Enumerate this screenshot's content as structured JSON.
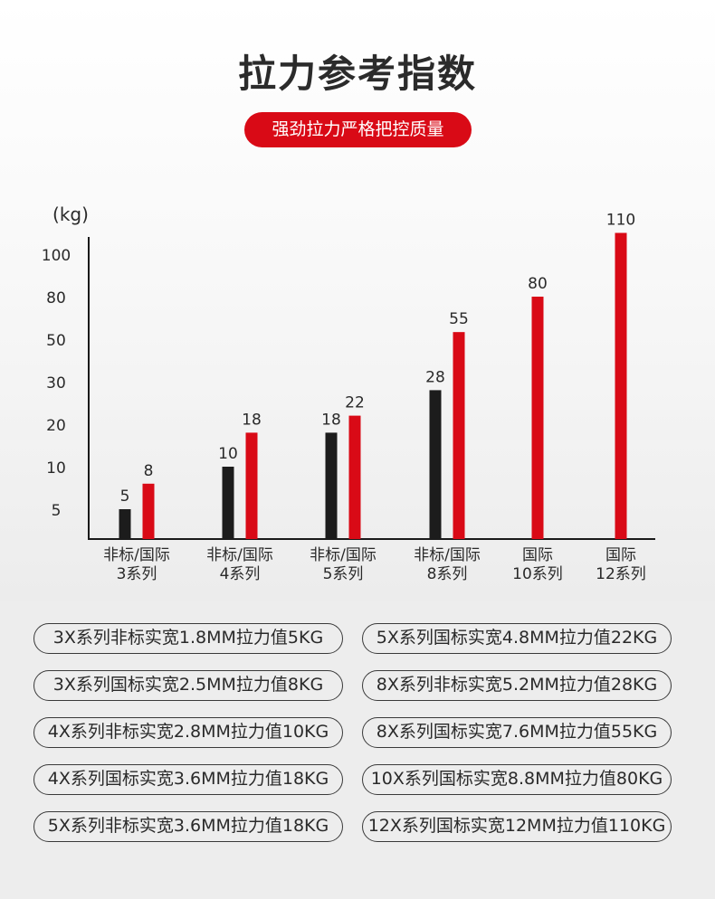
{
  "header": {
    "title": "拉力参考指数",
    "subtitle": "强劲拉力严格把控质量"
  },
  "chart_data": {
    "type": "bar",
    "ylabel": "(kg)",
    "y_ticks": [
      "5",
      "10",
      "20",
      "30",
      "50",
      "80",
      "100"
    ],
    "categories": [
      [
        "非标/国际",
        "3系列"
      ],
      [
        "非标/国际",
        "4系列"
      ],
      [
        "非标/国际",
        "5系列"
      ],
      [
        "非标/国际",
        "8系列"
      ],
      [
        "国际",
        "10系列"
      ],
      [
        "国际",
        "12系列"
      ]
    ],
    "series": [
      {
        "values": [
          5,
          10,
          18,
          28,
          null,
          null
        ],
        "color": "#1c1c1c"
      },
      {
        "values": [
          8,
          18,
          22,
          55,
          80,
          110
        ],
        "color": "#d90a16"
      }
    ],
    "grid": false,
    "legend": "none"
  },
  "spec_list": [
    "3X系列非标实宽1.8MM拉力值5KG",
    "5X系列国标实宽4.8MM拉力值22KG",
    "3X系列国标实宽2.5MM拉力值8KG",
    "8X系列非标实宽5.2MM拉力值28KG",
    "4X系列非标实宽2.8MM拉力值10KG",
    "8X系列国标实宽7.6MM拉力值55KG",
    "4X系列国标实宽3.6MM拉力值18KG",
    "10X系列国标实宽8.8MM拉力值80KG",
    "5X系列非标实宽3.6MM拉力值18KG",
    "12X系列国标实宽12MM拉力值110KG"
  ]
}
